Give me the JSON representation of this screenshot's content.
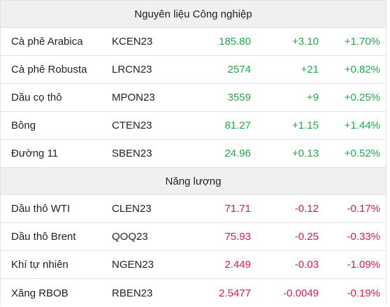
{
  "colors": {
    "up": "#21a84a",
    "down": "#e0193f",
    "header_bg": "#f0f0f0"
  },
  "sections": [
    {
      "title": "Nguyên liệu Công nghiệp",
      "rows": [
        {
          "name": "Cà phê Arabica",
          "code": "KCEN23",
          "price": "185.80",
          "change": "+3.10",
          "pct": "+1.70%",
          "trend": "up"
        },
        {
          "name": "Cà phê Robusta",
          "code": "LRCN23",
          "price": "2574",
          "change": "+21",
          "pct": "+0.82%",
          "trend": "up"
        },
        {
          "name": "Dầu cọ thô",
          "code": "MPON23",
          "price": "3559",
          "change": "+9",
          "pct": "+0.25%",
          "trend": "up"
        },
        {
          "name": "Bông",
          "code": "CTEN23",
          "price": "81.27",
          "change": "+1.15",
          "pct": "+1.44%",
          "trend": "up"
        },
        {
          "name": "Đường 11",
          "code": "SBEN23",
          "price": "24.96",
          "change": "+0.13",
          "pct": "+0.52%",
          "trend": "up"
        }
      ]
    },
    {
      "title": "Năng lượng",
      "rows": [
        {
          "name": "Dầu thô WTI",
          "code": "CLEN23",
          "price": "71.71",
          "change": "-0.12",
          "pct": "-0.17%",
          "trend": "down"
        },
        {
          "name": "Dầu thô Brent",
          "code": "QOQ23",
          "price": "75.93",
          "change": "-0.25",
          "pct": "-0.33%",
          "trend": "down"
        },
        {
          "name": "Khí tự nhiên",
          "code": "NGEN23",
          "price": "2.449",
          "change": "-0.03",
          "pct": "-1.09%",
          "trend": "down"
        },
        {
          "name": "Xăng RBOB",
          "code": "RBEN23",
          "price": "2.5477",
          "change": "-0.0049",
          "pct": "-0.19%",
          "trend": "down"
        }
      ]
    }
  ]
}
